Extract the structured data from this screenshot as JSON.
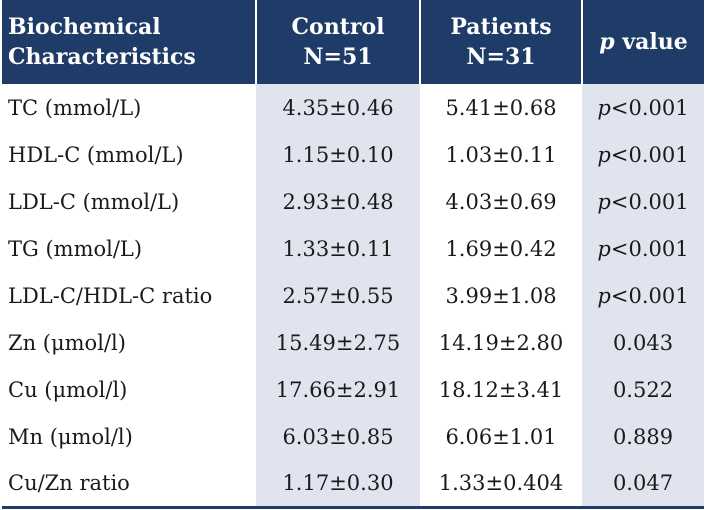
{
  "header": {
    "col1_line1": "Biochemical",
    "col1_line2": "Characteristics",
    "col2_line1": "Control",
    "col2_line2": "N=51",
    "col3_line1": "Patients",
    "col3_line2": "N=31",
    "col4_italic": "p",
    "col4_rest": " value"
  },
  "rows": [
    {
      "label": "TC (mmol/L)",
      "control": "4.35±0.46",
      "patients": "5.41±0.68",
      "p_italic": "p",
      "p_rest": "<0.001"
    },
    {
      "label": "HDL-C (mmol/L)",
      "control": "1.15±0.10",
      "patients": "1.03±0.11",
      "p_italic": "p",
      "p_rest": "<0.001"
    },
    {
      "label": "LDL-C (mmol/L)",
      "control": "2.93±0.48",
      "patients": "4.03±0.69",
      "p_italic": "p",
      "p_rest": "<0.001"
    },
    {
      "label": "TG (mmol/L)",
      "control": "1.33±0.11",
      "patients": "1.69±0.42",
      "p_italic": "p",
      "p_rest": "<0.001"
    },
    {
      "label": "LDL-C/HDL-C ratio",
      "control": "2.57±0.55",
      "patients": "3.99±1.08",
      "p_italic": "p",
      "p_rest": "<0.001"
    },
    {
      "label": "Zn (μmol/l)",
      "control": "15.49±2.75",
      "patients": "14.19±2.80",
      "p_italic": "",
      "p_rest": "0.043"
    },
    {
      "label": "Cu (μmol/l)",
      "control": "17.66±2.91",
      "patients": "18.12±3.41",
      "p_italic": "",
      "p_rest": "0.522"
    },
    {
      "label": "Mn (μmol/l)",
      "control": "6.03±0.85",
      "patients": "6.06±1.01",
      "p_italic": "",
      "p_rest": "0.889"
    },
    {
      "label": "Cu/Zn ratio",
      "control": "1.17±0.30",
      "patients": "1.33±0.404",
      "p_italic": "",
      "p_rest": "0.047"
    }
  ]
}
